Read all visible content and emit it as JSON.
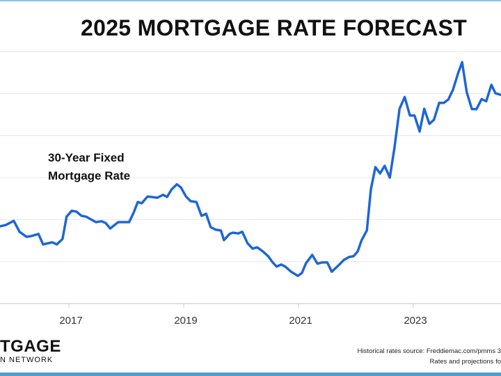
{
  "title": "2025 MORTGAGE RATE FORECAST",
  "logo": {
    "line1": "TGAGE",
    "line2": "N NETWORK"
  },
  "source": {
    "line1": "Historical rates source: Freddiemac.com/pmms 3",
    "line2": "Rates and projections fo"
  },
  "colors": {
    "line": "#1f66d6",
    "grid": "#e6e6e6",
    "accent_bar": "#4a9fd0"
  },
  "chart_data": {
    "type": "line",
    "title": "2025 MORTGAGE RATE FORECAST",
    "annotation": [
      "30-Year Fixed",
      "Mortgage Rate"
    ],
    "xlabel": "",
    "ylabel": "",
    "x_ticks": [
      "2017",
      "2019",
      "2021",
      "2023"
    ],
    "xlim": [
      2015.8,
      2024.53
    ],
    "ylim": [
      2,
      8.6
    ],
    "y_gridlines": [
      3,
      4,
      5,
      6,
      7,
      8
    ],
    "grid": true,
    "series": [
      {
        "x": [
          2015.8,
          2015.9,
          2016.04,
          2016.14,
          2016.26,
          2016.35,
          2016.47,
          2016.55,
          2016.71,
          2016.79,
          2016.89,
          2016.96,
          2017.05,
          2017.13,
          2017.22,
          2017.3,
          2017.47,
          2017.57,
          2017.64,
          2017.72,
          2017.86,
          2018.05,
          2018.13,
          2018.2,
          2018.27,
          2018.37,
          2018.54,
          2018.64,
          2018.71,
          2018.79,
          2018.88,
          2018.95,
          2019.04,
          2019.12,
          2019.22,
          2019.31,
          2019.39,
          2019.47,
          2019.56,
          2019.65,
          2019.7,
          2019.8,
          2019.86,
          2019.95,
          2020.02,
          2020.11,
          2020.2,
          2020.28,
          2020.38,
          2020.47,
          2020.55,
          2020.62,
          2020.7,
          2020.77,
          2020.87,
          2020.99,
          2021.06,
          2021.13,
          2021.24,
          2021.33,
          2021.41,
          2021.5,
          2021.58,
          2021.69,
          2021.79,
          2021.88,
          2021.96,
          2022.03,
          2022.1,
          2022.19,
          2022.26,
          2022.34,
          2022.42,
          2022.5,
          2022.59,
          2022.67,
          2022.76,
          2022.85,
          2022.94,
          2023.02,
          2023.11,
          2023.19,
          2023.28,
          2023.36,
          2023.45,
          2023.53,
          2023.61,
          2023.69,
          2023.78,
          2023.85,
          2023.93,
          2024.02,
          2024.1,
          2024.19,
          2024.27,
          2024.36,
          2024.43,
          2024.53
        ],
        "y": [
          3.84,
          3.87,
          3.97,
          3.71,
          3.59,
          3.61,
          3.66,
          3.41,
          3.46,
          3.41,
          3.54,
          4.07,
          4.21,
          4.19,
          4.09,
          4.07,
          3.94,
          3.96,
          3.92,
          3.79,
          3.94,
          3.94,
          4.17,
          4.42,
          4.39,
          4.55,
          4.52,
          4.59,
          4.54,
          4.72,
          4.84,
          4.77,
          4.55,
          4.44,
          4.42,
          4.09,
          4.14,
          3.82,
          3.76,
          3.74,
          3.51,
          3.66,
          3.69,
          3.67,
          3.71,
          3.44,
          3.31,
          3.34,
          3.24,
          3.13,
          2.98,
          2.88,
          2.93,
          2.88,
          2.76,
          2.66,
          2.73,
          2.96,
          3.16,
          2.95,
          2.98,
          2.98,
          2.76,
          2.9,
          3.04,
          3.11,
          3.13,
          3.24,
          3.51,
          3.74,
          4.72,
          5.25,
          5.1,
          5.28,
          5.0,
          5.7,
          6.64,
          6.92,
          6.48,
          6.48,
          6.1,
          6.64,
          6.28,
          6.38,
          6.78,
          6.78,
          6.86,
          7.09,
          7.49,
          7.75,
          7.04,
          6.63,
          6.63,
          6.87,
          6.82,
          7.21,
          7.01,
          6.97
        ]
      }
    ]
  }
}
